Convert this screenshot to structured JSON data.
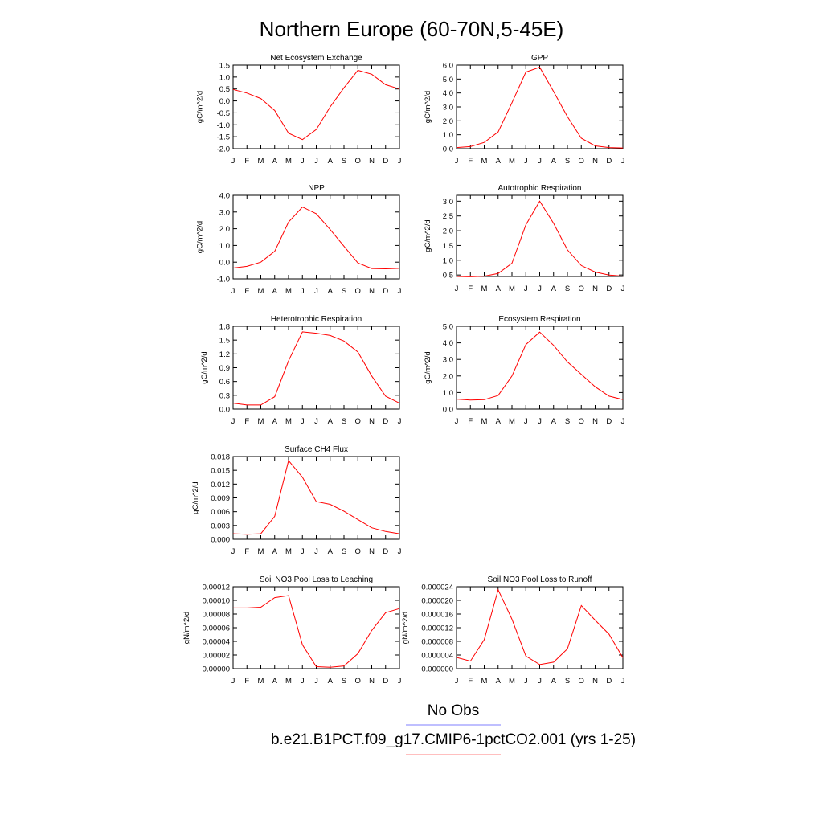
{
  "figure": {
    "title": "Northern Europe (60-70N,5-45E)"
  },
  "legend": {
    "entries": [
      {
        "label": "No Obs",
        "color": "#7f7fff"
      },
      {
        "label": "b.e21.B1PCT.f09_g17.CMIP6-1pctCO2.001 (yrs 1-25)",
        "color": "#ff7f7f"
      }
    ]
  },
  "chart_data": [
    {
      "type": "line",
      "title": "Net Ecosystem Exchange",
      "ylabel": "gC/m^2/d",
      "categories": [
        "J",
        "F",
        "M",
        "A",
        "M",
        "J",
        "J",
        "A",
        "S",
        "O",
        "N",
        "D",
        "J"
      ],
      "ylim": [
        -2.0,
        1.5
      ],
      "yticks": [
        -2.0,
        -1.5,
        -1.0,
        -0.5,
        0.0,
        0.5,
        1.0,
        1.5
      ],
      "yticklabels": [
        "-2.0",
        "-1.5",
        "-1.0",
        "-0.5",
        "0.0",
        "0.5",
        "1.0",
        "1.5"
      ],
      "series": [
        {
          "color": "#ff0000",
          "values": [
            0.48,
            0.33,
            0.1,
            -0.4,
            -1.35,
            -1.62,
            -1.2,
            -0.25,
            0.55,
            1.28,
            1.12,
            0.68,
            0.5
          ]
        }
      ]
    },
    {
      "type": "line",
      "title": "GPP",
      "ylabel": "gC/m^2/d",
      "categories": [
        "J",
        "F",
        "M",
        "A",
        "M",
        "J",
        "J",
        "A",
        "S",
        "O",
        "N",
        "D",
        "J"
      ],
      "ylim": [
        0.0,
        6.0
      ],
      "yticks": [
        0,
        1,
        2,
        3,
        4,
        5,
        6
      ],
      "yticklabels": [
        "0.0",
        "1.0",
        "2.0",
        "3.0",
        "4.0",
        "5.0",
        "6.0"
      ],
      "series": [
        {
          "color": "#ff0000",
          "values": [
            0.08,
            0.15,
            0.45,
            1.2,
            3.3,
            5.5,
            5.85,
            4.1,
            2.3,
            0.75,
            0.2,
            0.08,
            0.05
          ]
        }
      ]
    },
    {
      "type": "line",
      "title": "NPP",
      "ylabel": "gC/m^2/d",
      "categories": [
        "J",
        "F",
        "M",
        "A",
        "M",
        "J",
        "J",
        "A",
        "S",
        "O",
        "N",
        "D",
        "J"
      ],
      "ylim": [
        -1.0,
        4.0
      ],
      "yticks": [
        -1,
        0,
        1,
        2,
        3,
        4
      ],
      "yticklabels": [
        "-1.0",
        "0.0",
        "1.0",
        "2.0",
        "3.0",
        "4.0"
      ],
      "series": [
        {
          "color": "#ff0000",
          "values": [
            -0.35,
            -0.25,
            0.0,
            0.65,
            2.4,
            3.3,
            2.9,
            1.95,
            0.95,
            -0.05,
            -0.38,
            -0.4,
            -0.37
          ]
        }
      ]
    },
    {
      "type": "line",
      "title": "Autotrophic Respiration",
      "ylabel": "gC/m^2/d",
      "categories": [
        "J",
        "F",
        "M",
        "A",
        "M",
        "J",
        "J",
        "A",
        "S",
        "O",
        "N",
        "D",
        "J"
      ],
      "ylim": [
        0.45,
        3.2
      ],
      "yticks": [
        0.5,
        1.0,
        1.5,
        2.0,
        2.5,
        3.0
      ],
      "yticklabels": [
        "0.5",
        "1.0",
        "1.5",
        "2.0",
        "2.5",
        "3.0"
      ],
      "series": [
        {
          "color": "#ff0000",
          "values": [
            0.45,
            0.44,
            0.46,
            0.55,
            0.9,
            2.2,
            3.0,
            2.25,
            1.35,
            0.82,
            0.6,
            0.5,
            0.46
          ]
        }
      ]
    },
    {
      "type": "line",
      "title": "Heterotrophic Respiration",
      "ylabel": "gC/m^2/d",
      "categories": [
        "J",
        "F",
        "M",
        "A",
        "M",
        "J",
        "J",
        "A",
        "S",
        "O",
        "N",
        "D",
        "J"
      ],
      "ylim": [
        0.0,
        1.8
      ],
      "yticks": [
        0.0,
        0.3,
        0.6,
        0.9,
        1.2,
        1.5,
        1.8
      ],
      "yticklabels": [
        "0.0",
        "0.3",
        "0.6",
        "0.9",
        "1.2",
        "1.5",
        "1.8"
      ],
      "series": [
        {
          "color": "#ff0000",
          "values": [
            0.13,
            0.09,
            0.09,
            0.27,
            1.05,
            1.68,
            1.65,
            1.6,
            1.48,
            1.24,
            0.72,
            0.28,
            0.13
          ]
        }
      ]
    },
    {
      "type": "line",
      "title": "Ecosystem Respiration",
      "ylabel": "gC/m^2/d",
      "categories": [
        "J",
        "F",
        "M",
        "A",
        "M",
        "J",
        "J",
        "A",
        "S",
        "O",
        "N",
        "D",
        "J"
      ],
      "ylim": [
        0.0,
        5.0
      ],
      "yticks": [
        0,
        1,
        2,
        3,
        4,
        5
      ],
      "yticklabels": [
        "0.0",
        "1.0",
        "2.0",
        "3.0",
        "4.0",
        "5.0"
      ],
      "series": [
        {
          "color": "#ff0000",
          "values": [
            0.6,
            0.55,
            0.57,
            0.82,
            2.0,
            3.9,
            4.65,
            3.85,
            2.85,
            2.1,
            1.35,
            0.78,
            0.58
          ]
        }
      ]
    },
    {
      "type": "line",
      "title": "Surface CH4 Flux",
      "ylabel": "gC/m^2/d",
      "categories": [
        "J",
        "F",
        "M",
        "A",
        "M",
        "J",
        "J",
        "A",
        "S",
        "O",
        "N",
        "D",
        "J"
      ],
      "ylim": [
        0.0,
        0.018
      ],
      "yticks": [
        0.0,
        0.003,
        0.006,
        0.009,
        0.012,
        0.015,
        0.018
      ],
      "yticklabels": [
        "0.000",
        "0.003",
        "0.006",
        "0.009",
        "0.012",
        "0.015",
        "0.018"
      ],
      "series": [
        {
          "color": "#ff0000",
          "values": [
            0.0012,
            0.0011,
            0.0012,
            0.005,
            0.0171,
            0.0135,
            0.0082,
            0.0076,
            0.0061,
            0.0043,
            0.0025,
            0.0017,
            0.0012
          ]
        }
      ]
    },
    {
      "type": "line",
      "title": "Soil NO3 Pool Loss to Leaching",
      "ylabel": "gN/m^2/d",
      "categories": [
        "J",
        "F",
        "M",
        "A",
        "M",
        "J",
        "J",
        "A",
        "S",
        "O",
        "N",
        "D",
        "J"
      ],
      "ylim": [
        0.0,
        0.00012
      ],
      "yticks": [
        0.0,
        2e-05,
        4e-05,
        6e-05,
        8e-05,
        0.0001,
        0.00012
      ],
      "yticklabels": [
        "0.00000",
        "0.00002",
        "0.00004",
        "0.00006",
        "0.00008",
        "0.00010",
        "0.00012"
      ],
      "series": [
        {
          "color": "#ff0000",
          "values": [
            8.9e-05,
            8.9e-05,
            9e-05,
            0.000104,
            0.000107,
            3.5e-05,
            3e-06,
            2e-06,
            4e-06,
            2.2e-05,
            5.6e-05,
            8.2e-05,
            8.8e-05
          ]
        }
      ]
    },
    {
      "type": "line",
      "title": "Soil NO3 Pool Loss to Runoff",
      "ylabel": "gN/m^2/d",
      "categories": [
        "J",
        "F",
        "M",
        "A",
        "M",
        "J",
        "J",
        "A",
        "S",
        "O",
        "N",
        "D",
        "J"
      ],
      "ylim": [
        0.0,
        2.4e-05
      ],
      "yticks": [
        0.0,
        4e-06,
        8e-06,
        1.2e-05,
        1.6e-05,
        2e-05,
        2.4e-05
      ],
      "yticklabels": [
        "0.000000",
        "0.000004",
        "0.000008",
        "0.000012",
        "0.000016",
        "0.000020",
        "0.000024"
      ],
      "series": [
        {
          "color": "#ff0000",
          "values": [
            3.3e-06,
            2.2e-06,
            8.5e-06,
            2.31e-05,
            1.45e-05,
            3.7e-06,
            1.2e-06,
            1.9e-06,
            5.8e-06,
            1.85e-05,
            1.42e-05,
            1.01e-05,
            3.2e-06
          ]
        }
      ]
    }
  ]
}
